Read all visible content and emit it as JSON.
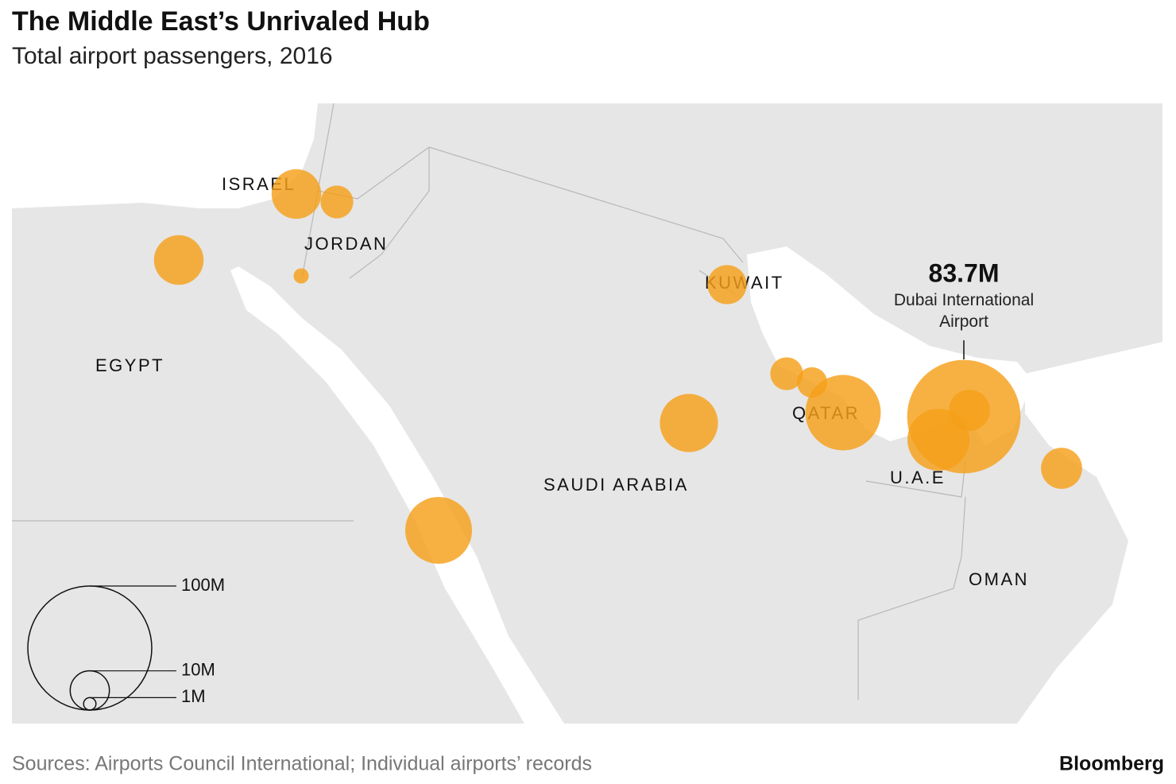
{
  "title": "The Middle East’s Unrivaled Hub",
  "subtitle": "Total airport passengers, 2016",
  "countries": [
    "ISRAEL",
    "JORDAN",
    "EGYPT",
    "KUWAIT",
    "QATAR",
    "SAUDI ARABIA",
    "U.A.E",
    "OMAN"
  ],
  "bubbles": [
    16,
    7,
    16,
    1.5,
    10,
    22,
    29,
    7,
    6,
    37,
    11,
    25,
    11,
    83.7
  ],
  "bubble_color": "#f5a01a",
  "callout": {
    "value_label": "83.7M",
    "label": "Dubai International Airport"
  },
  "legend": {
    "ticks": [
      {
        "value": 100,
        "label": "100M"
      },
      {
        "value": 10,
        "label": "10M"
      },
      {
        "value": 1,
        "label": "1M"
      }
    ]
  },
  "source": "Sources: Airports Council International; Individual airports’ records",
  "brand": "Bloomberg"
}
